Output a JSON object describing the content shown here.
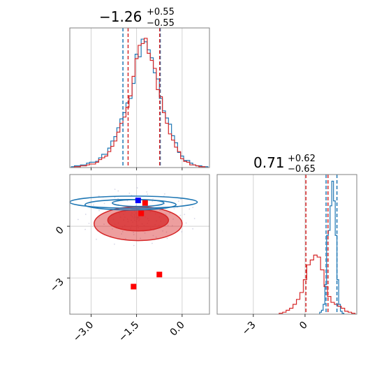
{
  "colors": {
    "series_a": "#1f77b4",
    "series_b": "#d62728",
    "grid": "#c8c8c8",
    "frame": "#808080",
    "marker_blue": "#0000ff",
    "marker_red": "#ff0000"
  },
  "chart_data": {
    "type": "corner",
    "parameters": 2,
    "grid": true,
    "panels": [
      {
        "id": "hist-param1",
        "type": "histogram",
        "title": {
          "median": "−1.26",
          "upper": "+0.55",
          "lower": "−0.55"
        },
        "xlim": [
          -3.7,
          0.9
        ],
        "xticks": [
          -3.0,
          -1.5,
          0.0
        ],
        "quantile_lines": {
          "series_a": [
            -1.95,
            -0.72
          ],
          "series_b": [
            -1.78,
            -0.74
          ]
        },
        "series": [
          {
            "color_key": "series_a",
            "x": [
              -3.6,
              -3.5,
              -3.4,
              -3.3,
              -3.2,
              -3.1,
              -3.0,
              -2.9,
              -2.8,
              -2.7,
              -2.6,
              -2.5,
              -2.4,
              -2.3,
              -2.2,
              -2.1,
              -2.0,
              -1.9,
              -1.8,
              -1.7,
              -1.6,
              -1.5,
              -1.4,
              -1.3,
              -1.2,
              -1.1,
              -1.0,
              -0.9,
              -0.8,
              -0.7,
              -0.6,
              -0.5,
              -0.4,
              -0.3,
              -0.2,
              -0.1,
              0.0,
              0.1,
              0.2,
              0.3,
              0.4,
              0.5,
              0.6,
              0.7,
              0.8
            ],
            "y": [
              1,
              2,
              2,
              3,
              3,
              5,
              6,
              6,
              7,
              11,
              15,
              15,
              22,
              30,
              35,
              45,
              55,
              62,
              73,
              78,
              95,
              128,
              125,
              145,
              142,
              133,
              124,
              107,
              100,
              78,
              64,
              56,
              49,
              36,
              28,
              17,
              13,
              8,
              8,
              5,
              3,
              2,
              2,
              1,
              1
            ]
          },
          {
            "color_key": "series_b",
            "x": [
              -3.6,
              -3.5,
              -3.4,
              -3.3,
              -3.2,
              -3.1,
              -3.0,
              -2.9,
              -2.8,
              -2.7,
              -2.6,
              -2.5,
              -2.4,
              -2.3,
              -2.2,
              -2.1,
              -2.0,
              -1.9,
              -1.8,
              -1.7,
              -1.6,
              -1.5,
              -1.4,
              -1.3,
              -1.2,
              -1.1,
              -1.0,
              -0.9,
              -0.8,
              -0.7,
              -0.6,
              -0.5,
              -0.4,
              -0.3,
              -0.2,
              -0.1,
              0.0,
              0.1,
              0.2,
              0.3,
              0.4,
              0.5,
              0.6,
              0.7,
              0.8
            ],
            "y": [
              0,
              1,
              1,
              2,
              2,
              3,
              4,
              4,
              6,
              9,
              11,
              13,
              18,
              24,
              30,
              40,
              50,
              57,
              68,
              81,
              103,
              123,
              138,
              140,
              146,
              129,
              121,
              112,
              88,
              80,
              62,
              50,
              38,
              31,
              23,
              18,
              10,
              7,
              6,
              3,
              3,
              2,
              1,
              1,
              0
            ]
          }
        ]
      },
      {
        "id": "joint",
        "type": "contour",
        "xlim": [
          -3.7,
          0.9
        ],
        "ylim": [
          -5.1,
          3.0
        ],
        "xticks": [
          -3.0,
          -1.5,
          0.0
        ],
        "yticks": [
          0,
          -3
        ],
        "filled_levels": [
          {
            "color_key": "series_b",
            "opacity": 0.45,
            "cx": -1.45,
            "cy": 0.15,
            "rx": 1.45,
            "ry": 0.98
          },
          {
            "color_key": "series_b",
            "opacity": 0.75,
            "cx": -1.45,
            "cy": 0.35,
            "rx": 1.0,
            "ry": 0.62
          }
        ],
        "line_contours": [
          {
            "color_key": "series_a",
            "cx": -1.6,
            "cy": 1.4,
            "rx": 2.1,
            "ry": 0.35
          },
          {
            "color_key": "series_a",
            "cx": -1.7,
            "cy": 1.25,
            "rx": 1.5,
            "ry": 0.3
          },
          {
            "color_key": "series_a",
            "cx": -1.45,
            "cy": 1.35,
            "rx": 0.85,
            "ry": 0.2
          }
        ],
        "markers": [
          {
            "color_key": "marker_blue",
            "x": -1.45,
            "y": 1.5
          },
          {
            "color_key": "marker_red",
            "x": -1.22,
            "y": 1.35
          },
          {
            "color_key": "marker_red",
            "x": -1.35,
            "y": 0.75
          },
          {
            "color_key": "marker_red",
            "x": -0.75,
            "y": -2.8
          },
          {
            "color_key": "marker_red",
            "x": -1.6,
            "y": -3.5
          }
        ]
      },
      {
        "id": "hist-param2",
        "type": "histogram",
        "title": {
          "median": "0.71",
          "upper": "+0.62",
          "lower": "−0.65"
        },
        "xlim": [
          -5.1,
          3.0
        ],
        "xticks": [
          -3,
          0
        ],
        "quantile_lines": {
          "series_a": [
            1.22,
            1.85
          ],
          "series_b": [
            0.05,
            1.33
          ]
        },
        "series": [
          {
            "color_key": "series_a",
            "x": [
              0.9,
              1.0,
              1.1,
              1.2,
              1.3,
              1.4,
              1.5,
              1.6,
              1.7,
              1.8,
              1.9,
              2.0,
              2.1,
              2.2
            ],
            "y": [
              2,
              4,
              10,
              30,
              80,
              85,
              110,
              135,
              115,
              80,
              35,
              10,
              3,
              1
            ]
          },
          {
            "color_key": "series_b",
            "x": [
              -1.4,
              -1.2,
              -1.0,
              -0.8,
              -0.6,
              -0.4,
              -0.2,
              0.0,
              0.2,
              0.4,
              0.6,
              0.8,
              1.0,
              1.2,
              1.4,
              1.6,
              1.8,
              2.0,
              2.2,
              2.4,
              2.6,
              2.8
            ],
            "y": [
              1,
              2,
              4,
              6,
              10,
              15,
              22,
              35,
              50,
              55,
              60,
              58,
              45,
              28,
              18,
              12,
              10,
              8,
              6,
              3,
              2,
              1
            ]
          }
        ]
      }
    ]
  }
}
